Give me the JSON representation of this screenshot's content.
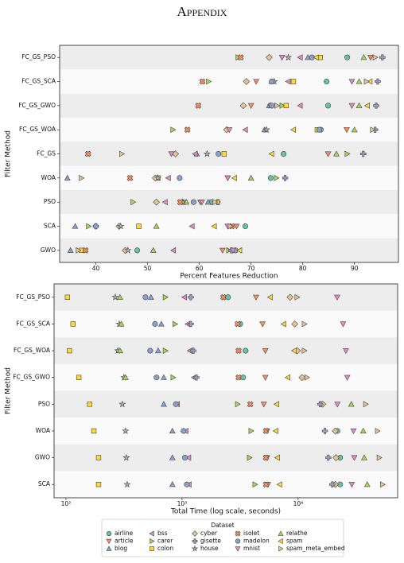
{
  "title": "Appendix",
  "chart_data": [
    {
      "type": "dot",
      "xlabel": "Percent Features Reduction",
      "ylabel": "Filter Method",
      "categories": [
        "FC_GS_PSO",
        "FC_GS_SCA",
        "FC_GS_GWO",
        "FC_GS_WOA",
        "FC_GS",
        "WOA",
        "PSO",
        "SCA",
        "GWO"
      ],
      "xlim": [
        33,
        98.5
      ],
      "xticks": [
        40,
        50,
        60,
        70,
        80,
        90
      ],
      "series": [
        {
          "name": "airline",
          "color": "#66c2a5",
          "marker": "circle",
          "values": [
            88.6,
            84.6,
            84.9,
            83.5,
            76.3,
            73.8,
            62.3,
            68.9,
            48
          ]
        },
        {
          "name": "article",
          "color": "#fc8d62",
          "marker": "triangle_down",
          "values": [
            93.1,
            71,
            70,
            88.5,
            84.9,
            65.5,
            60.2,
            67.2,
            64.5
          ]
        },
        {
          "name": "blog",
          "color": "#8da0cb",
          "marker": "triangle_up",
          "values": [
            81,
            74,
            73.5,
            72.6,
            59.5,
            34.5,
            61.7,
            36,
            35.1
          ]
        },
        {
          "name": "bss",
          "color": "#e78ac3",
          "marker": "triangle_left",
          "values": [
            79.5,
            77.2,
            79.5,
            68.9,
            59.2,
            54,
            53.4,
            58.6,
            55
          ]
        },
        {
          "name": "carer",
          "color": "#a6d854",
          "marker": "triangle_right",
          "values": [
            67.5,
            61.8,
            76,
            54.9,
            88.6,
            74.9,
            47.2,
            38.6,
            65.7
          ]
        },
        {
          "name": "colon",
          "color": "#ffd92f",
          "marker": "square",
          "values": [
            83.4,
            78.2,
            76.8,
            82.8,
            64.8,
            52,
            57,
            48.3,
            37.2
          ]
        },
        {
          "name": "cyber",
          "color": "#e5c494",
          "marker": "diamond",
          "values": [
            73.5,
            69.1,
            68.5,
            65.3,
            55.4,
            51.5,
            51.7,
            44.5,
            45.7
          ]
        },
        {
          "name": "gisette",
          "color": "#9aa0c0",
          "marker": "plus",
          "values": [
            95.4,
            94.5,
            94.2,
            94,
            91.7,
            76.6,
            63.5,
            40,
            66.2
          ]
        },
        {
          "name": "house",
          "color": "#b3b3b3",
          "marker": "star",
          "values": [
            77.2,
            74.5,
            73.8,
            73,
            61.5,
            52,
            56.8,
            44.8,
            46.2
          ]
        },
        {
          "name": "isolet",
          "color": "#fc8d62",
          "marker": "x",
          "values": [
            68,
            60.6,
            59.8,
            57.7,
            38.5,
            46.6,
            56.3,
            66.3,
            38
          ]
        },
        {
          "name": "madelon",
          "color": "#8da0cb",
          "marker": "circle",
          "values": [
            81.8,
            74,
            74,
            83.2,
            63.7,
            56.2,
            58.9,
            40,
            67
          ]
        },
        {
          "name": "mnist",
          "color": "#e78ac3",
          "marker": "triangle_down",
          "values": [
            76,
            89.5,
            89.5,
            65.8,
            54.6,
            65.5,
            60.5,
            65.5,
            66.5
          ]
        },
        {
          "name": "relathe",
          "color": "#a6d854",
          "marker": "triangle_up",
          "values": [
            91.8,
            90.9,
            90.9,
            90,
            86.5,
            70,
            57.5,
            51.7,
            51.1
          ]
        },
        {
          "name": "spam",
          "color": "#ffd92f",
          "marker": "triangle_left",
          "values": [
            82.6,
            93,
            92.5,
            78.2,
            74,
            66.8,
            63.5,
            62.9,
            67.8
          ]
        },
        {
          "name": "spam_meta_embed",
          "color": "#e5c494",
          "marker": "triangle_right",
          "values": [
            94,
            92.3,
            75,
            93.5,
            45,
            37.2,
            63,
            66,
            36.6
          ]
        }
      ]
    },
    {
      "type": "dot",
      "xlabel": "Total Time (log scale, seconds)",
      "ylabel": "Filter Method",
      "xscale": "log",
      "legend_title": "Dataset",
      "categories": [
        "FC_GS_PSO",
        "FC_GS_SCA",
        "FC_GS_WOA",
        "FC_GS_GWO",
        "PSO",
        "WOA",
        "GWO",
        "SCA"
      ],
      "xlim": [
        79,
        72000
      ],
      "xticks": [
        {
          "value": 100,
          "label": "10²"
        },
        {
          "value": 1000,
          "label": "10³"
        },
        {
          "value": 10000,
          "label": "10⁴"
        }
      ],
      "series": [
        {
          "name": "airline",
          "color": "#66c2a5",
          "marker": "circle",
          "values": [
            2490,
            3170,
            3530,
            3360,
            15800,
            21800,
            23000,
            23000
          ]
        },
        {
          "name": "article",
          "color": "#fc8d62",
          "marker": "triangle_down",
          "values": [
            4340,
            4940,
            5220,
            5220,
            5060,
            5400,
            5400,
            5500
          ]
        },
        {
          "name": "blog",
          "color": "#8da0cb",
          "marker": "triangle_up",
          "values": [
            540,
            663,
            623,
            696,
            696,
            826,
            826,
            826
          ]
        },
        {
          "name": "bss",
          "color": "#e78ac3",
          "marker": "triangle_left",
          "values": [
            1050,
            1120,
            1170,
            1270,
            910,
            1080,
            1140,
            1150
          ]
        },
        {
          "name": "carer",
          "color": "#a6d854",
          "marker": "triangle_right",
          "values": [
            717,
            870,
            717,
            837,
            3010,
            3930,
            3810,
            4250
          ]
        },
        {
          "name": "colon",
          "color": "#ffd92f",
          "marker": "square",
          "values": [
            103,
            115,
            107,
            129,
            160,
            174,
            191,
            191
          ]
        },
        {
          "name": "cyber",
          "color": "#e5c494",
          "marker": "diamond",
          "values": [
            8520,
            9360,
            9840,
            10800,
            16300,
            20900,
            21200,
            20900
          ]
        },
        {
          "name": "gisette",
          "color": "#9aa0c0",
          "marker": "plus",
          "values": [
            1190,
            1190,
            1250,
            1330,
            15500,
            17000,
            18200,
            19700
          ]
        },
        {
          "name": "house",
          "color": "#b3b3b3",
          "marker": "star",
          "values": [
            266,
            288,
            280,
            316,
            306,
            326,
            331,
            337
          ]
        },
        {
          "name": "isolet",
          "color": "#fc8d62",
          "marker": "x",
          "values": [
            2270,
            3020,
            3070,
            3070,
            3870,
            5280,
            5280,
            5280
          ]
        },
        {
          "name": "madelon",
          "color": "#8da0cb",
          "marker": "circle",
          "values": [
            484,
            585,
            532,
            603,
            885,
            1030,
            1060,
            1100
          ]
        },
        {
          "name": "mnist",
          "color": "#e78ac3",
          "marker": "triangle_down",
          "values": [
            21700,
            24400,
            25800,
            26500,
            21800,
            30000,
            30500,
            29000
          ]
        },
        {
          "name": "relathe",
          "color": "#a6d854",
          "marker": "triangle_up",
          "values": [
            292,
            300,
            292,
            326,
            28700,
            36400,
            37100,
            39400
          ]
        },
        {
          "name": "spam",
          "color": "#ffd92f",
          "marker": "triangle_left",
          "values": [
            5750,
            7520,
            9240,
            8160,
            6530,
            6420,
            6640,
            6930
          ]
        },
        {
          "name": "spam_meta_embed",
          "color": "#e5c494",
          "marker": "triangle_right",
          "values": [
            9800,
            11300,
            11300,
            11900,
            38200,
            48300,
            49900,
            53400
          ]
        }
      ]
    }
  ]
}
